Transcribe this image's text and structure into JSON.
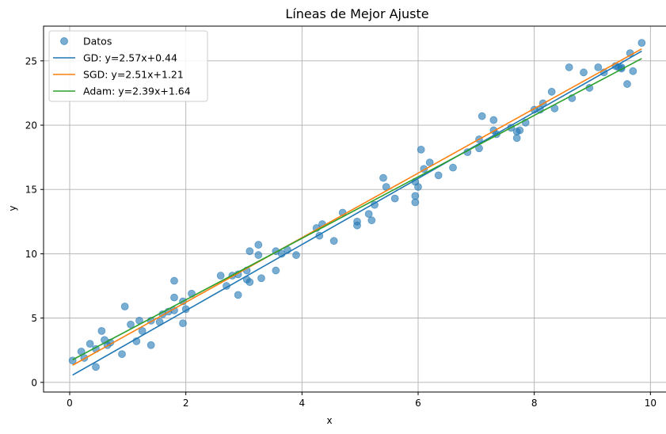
{
  "chart_data": {
    "type": "scatter",
    "title": "Líneas de Mejor Ajuste",
    "xlabel": "x",
    "ylabel": "y",
    "xlim": [
      -0.45,
      10.35
    ],
    "ylim": [
      -0.75,
      27.7
    ],
    "xticks": [
      0,
      2,
      4,
      6,
      8,
      10
    ],
    "yticks": [
      0,
      5,
      10,
      15,
      20,
      25
    ],
    "grid": true,
    "legend_position": "top-left",
    "series": [
      {
        "name": "Datos",
        "kind": "scatter",
        "color": "#1f77b4",
        "points": [
          [
            0.05,
            1.7
          ],
          [
            0.2,
            2.4
          ],
          [
            0.25,
            1.9
          ],
          [
            0.35,
            3.0
          ],
          [
            0.45,
            2.6
          ],
          [
            0.45,
            1.2
          ],
          [
            0.55,
            4.0
          ],
          [
            0.6,
            3.3
          ],
          [
            0.65,
            2.9
          ],
          [
            0.7,
            3.1
          ],
          [
            0.9,
            2.2
          ],
          [
            0.95,
            5.9
          ],
          [
            1.05,
            4.5
          ],
          [
            1.15,
            3.2
          ],
          [
            1.2,
            4.8
          ],
          [
            1.25,
            4.0
          ],
          [
            1.4,
            4.8
          ],
          [
            1.4,
            2.9
          ],
          [
            1.55,
            4.7
          ],
          [
            1.6,
            5.3
          ],
          [
            1.7,
            5.5
          ],
          [
            1.8,
            5.6
          ],
          [
            1.8,
            6.6
          ],
          [
            1.8,
            7.9
          ],
          [
            1.95,
            6.3
          ],
          [
            1.95,
            4.6
          ],
          [
            2.0,
            5.7
          ],
          [
            2.1,
            6.9
          ],
          [
            2.6,
            8.3
          ],
          [
            2.7,
            7.5
          ],
          [
            2.8,
            8.3
          ],
          [
            2.9,
            8.4
          ],
          [
            2.9,
            6.8
          ],
          [
            3.05,
            8.7
          ],
          [
            3.05,
            8.0
          ],
          [
            3.1,
            7.8
          ],
          [
            3.1,
            10.2
          ],
          [
            3.25,
            10.7
          ],
          [
            3.25,
            9.9
          ],
          [
            3.3,
            8.1
          ],
          [
            3.55,
            10.2
          ],
          [
            3.55,
            8.7
          ],
          [
            3.65,
            10.0
          ],
          [
            3.75,
            10.3
          ],
          [
            3.9,
            9.9
          ],
          [
            4.25,
            12.0
          ],
          [
            4.3,
            11.4
          ],
          [
            4.35,
            12.3
          ],
          [
            4.55,
            11.0
          ],
          [
            4.7,
            13.2
          ],
          [
            4.95,
            12.5
          ],
          [
            4.95,
            12.2
          ],
          [
            5.15,
            13.1
          ],
          [
            5.2,
            12.6
          ],
          [
            5.25,
            13.8
          ],
          [
            5.4,
            15.9
          ],
          [
            5.45,
            15.2
          ],
          [
            5.6,
            14.3
          ],
          [
            5.95,
            15.6
          ],
          [
            5.95,
            14.5
          ],
          [
            5.95,
            14.0
          ],
          [
            6.0,
            15.2
          ],
          [
            6.05,
            18.1
          ],
          [
            6.1,
            16.6
          ],
          [
            6.2,
            17.1
          ],
          [
            6.35,
            16.1
          ],
          [
            6.6,
            16.7
          ],
          [
            6.85,
            17.9
          ],
          [
            7.05,
            18.9
          ],
          [
            7.05,
            18.2
          ],
          [
            7.1,
            20.7
          ],
          [
            7.3,
            20.4
          ],
          [
            7.3,
            19.6
          ],
          [
            7.35,
            19.3
          ],
          [
            7.6,
            19.8
          ],
          [
            7.7,
            19.5
          ],
          [
            7.7,
            19.0
          ],
          [
            7.75,
            19.6
          ],
          [
            7.85,
            20.2
          ],
          [
            8.0,
            21.2
          ],
          [
            8.1,
            21.2
          ],
          [
            8.15,
            21.7
          ],
          [
            8.3,
            22.6
          ],
          [
            8.35,
            21.3
          ],
          [
            8.6,
            24.5
          ],
          [
            8.65,
            22.1
          ],
          [
            8.85,
            24.1
          ],
          [
            8.95,
            22.9
          ],
          [
            9.1,
            24.5
          ],
          [
            9.2,
            24.1
          ],
          [
            9.4,
            24.6
          ],
          [
            9.45,
            24.5
          ],
          [
            9.5,
            24.5
          ],
          [
            9.5,
            24.4
          ],
          [
            9.6,
            23.2
          ],
          [
            9.65,
            25.6
          ],
          [
            9.7,
            24.2
          ],
          [
            9.85,
            26.4
          ]
        ]
      },
      {
        "name": "GD: y=2.57x+0.44",
        "kind": "line",
        "color": "#1f77b4",
        "slope": 2.57,
        "intercept": 0.44,
        "x_range": [
          0.05,
          9.85
        ]
      },
      {
        "name": "SGD: y=2.51x+1.21",
        "kind": "line",
        "color": "#ff7f0e",
        "slope": 2.51,
        "intercept": 1.21,
        "x_range": [
          0.05,
          9.85
        ]
      },
      {
        "name": "Adam: y=2.39x+1.64",
        "kind": "line",
        "color": "#2ca02c",
        "slope": 2.39,
        "intercept": 1.64,
        "x_range": [
          0.05,
          9.85
        ]
      }
    ]
  }
}
